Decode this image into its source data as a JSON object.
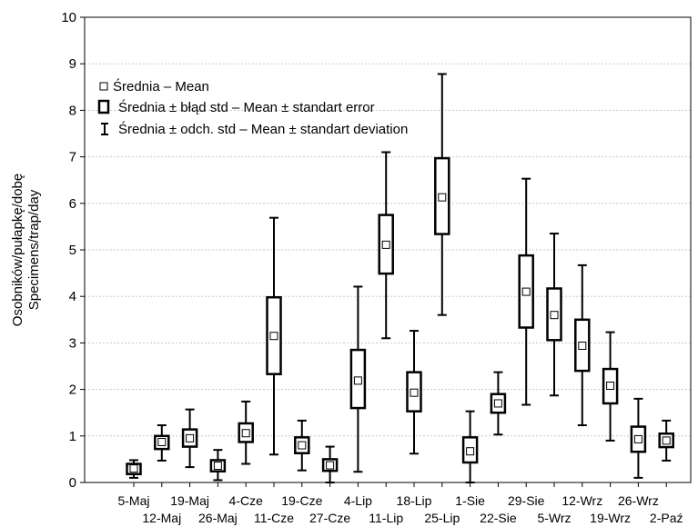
{
  "chart_data": {
    "type": "box",
    "ylabel_line1": "Osobników/pułapkę/dobę",
    "ylabel_line2": "Specimens/trap/day",
    "xlabel": "",
    "ylim": [
      0,
      10
    ],
    "yticks": [
      0,
      1,
      2,
      3,
      4,
      5,
      6,
      7,
      8,
      9,
      10
    ],
    "grid": true,
    "legend_position": "top-left",
    "legend": [
      {
        "symbol": "mean",
        "label": "Średnia – Mean"
      },
      {
        "symbol": "box",
        "label": "Średnia ± błąd std – Mean ± standart error"
      },
      {
        "symbol": "whisker",
        "label": "Średnia ± odch. std – Mean ± standart deviation"
      }
    ],
    "categories": [
      "5-Maj",
      "12-Maj",
      "19-Maj",
      "26-Maj",
      "4-Cze",
      "11-Cze",
      "19-Cze",
      "27-Cze",
      "4-Lip",
      "11-Lip",
      "18-Lip",
      "25-Lip",
      "1-Sie",
      "22-Sie",
      "29-Sie",
      "5-Wrz",
      "12-Wrz",
      "19-Wrz",
      "26-Wrz",
      "2-Paź"
    ],
    "series": [
      {
        "mean": 0.3,
        "se_low": 0.18,
        "se_high": 0.4,
        "sd_low": 0.1,
        "sd_high": 0.48
      },
      {
        "mean": 0.87,
        "se_low": 0.72,
        "se_high": 1.0,
        "sd_low": 0.47,
        "sd_high": 1.23
      },
      {
        "mean": 0.95,
        "se_low": 0.77,
        "se_high": 1.14,
        "sd_low": 0.33,
        "sd_high": 1.57
      },
      {
        "mean": 0.36,
        "se_low": 0.24,
        "se_high": 0.48,
        "sd_low": 0.05,
        "sd_high": 0.7
      },
      {
        "mean": 1.06,
        "se_low": 0.87,
        "se_high": 1.27,
        "sd_low": 0.4,
        "sd_high": 1.74
      },
      {
        "mean": 3.15,
        "se_low": 2.33,
        "se_high": 3.98,
        "sd_low": 0.6,
        "sd_high": 5.69
      },
      {
        "mean": 0.8,
        "se_low": 0.63,
        "se_high": 0.97,
        "sd_low": 0.26,
        "sd_high": 1.33
      },
      {
        "mean": 0.37,
        "se_low": 0.25,
        "se_high": 0.5,
        "sd_low": 0.0,
        "sd_high": 0.77
      },
      {
        "mean": 2.19,
        "se_low": 1.6,
        "se_high": 2.85,
        "sd_low": 0.23,
        "sd_high": 4.21
      },
      {
        "mean": 5.11,
        "se_low": 4.49,
        "se_high": 5.75,
        "sd_low": 3.1,
        "sd_high": 7.1
      },
      {
        "mean": 1.93,
        "se_low": 1.53,
        "se_high": 2.37,
        "sd_low": 0.62,
        "sd_high": 3.26
      },
      {
        "mean": 6.13,
        "se_low": 5.34,
        "se_high": 6.97,
        "sd_low": 3.6,
        "sd_high": 8.78
      },
      {
        "mean": 0.67,
        "se_low": 0.43,
        "se_high": 0.97,
        "sd_low": 0.0,
        "sd_high": 1.53
      },
      {
        "mean": 1.7,
        "se_low": 1.5,
        "se_high": 1.9,
        "sd_low": 1.03,
        "sd_high": 2.37
      },
      {
        "mean": 4.1,
        "se_low": 3.33,
        "se_high": 4.88,
        "sd_low": 1.67,
        "sd_high": 6.53
      },
      {
        "mean": 3.6,
        "se_low": 3.06,
        "se_high": 4.17,
        "sd_low": 1.87,
        "sd_high": 5.35
      },
      {
        "mean": 2.94,
        "se_low": 2.4,
        "se_high": 3.5,
        "sd_low": 1.23,
        "sd_high": 4.67
      },
      {
        "mean": 2.08,
        "se_low": 1.7,
        "se_high": 2.44,
        "sd_low": 0.9,
        "sd_high": 3.23
      },
      {
        "mean": 0.93,
        "se_low": 0.66,
        "se_high": 1.2,
        "sd_low": 0.1,
        "sd_high": 1.8
      },
      {
        "mean": 0.9,
        "se_low": 0.76,
        "se_high": 1.05,
        "sd_low": 0.47,
        "sd_high": 1.33
      }
    ]
  }
}
